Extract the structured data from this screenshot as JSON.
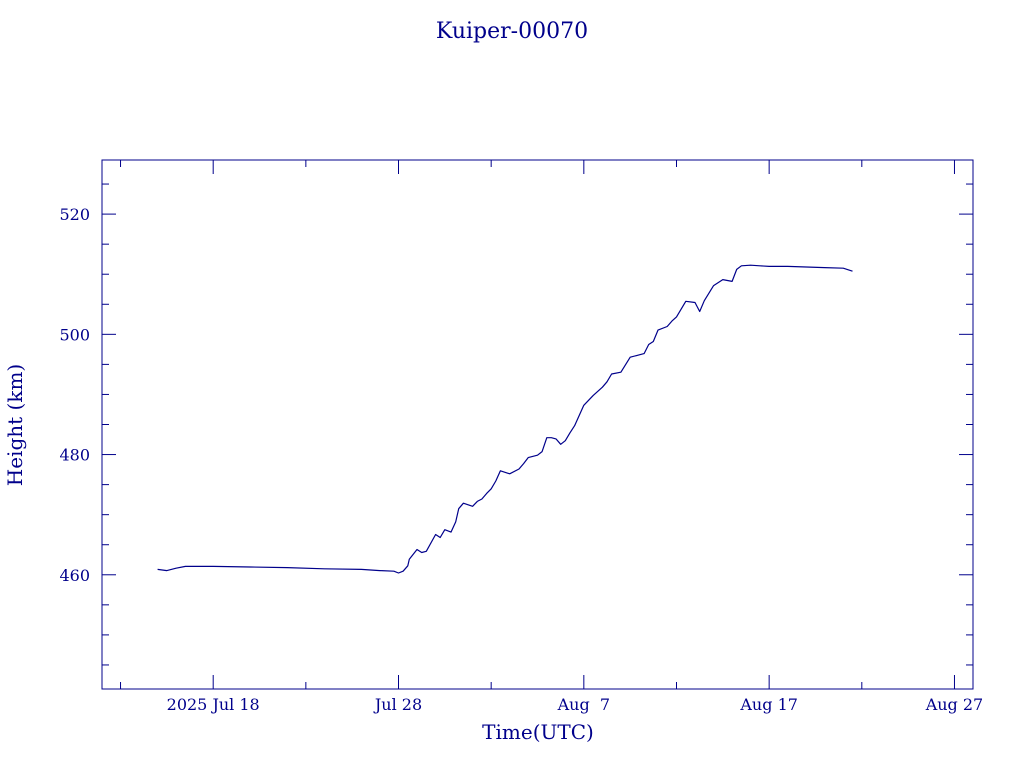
{
  "chart_data": {
    "type": "line",
    "title": "Kuiper-00070",
    "xlabel": "Time(UTC)",
    "ylabel": "Height (km)",
    "color": "#00008b",
    "x_range": [
      "2025-07-12",
      "2025-08-28"
    ],
    "ylim": [
      441,
      529
    ],
    "grid": false,
    "x_tick_labels": [
      {
        "date": "2025-07-18",
        "label": "2025 Jul 18"
      },
      {
        "date": "2025-07-28",
        "label": "Jul 28"
      },
      {
        "date": "2025-08-07",
        "label": "Aug  7"
      },
      {
        "date": "2025-08-17",
        "label": "Aug 17"
      },
      {
        "date": "2025-08-27",
        "label": "Aug 27"
      }
    ],
    "x_minor_tick_dates": [
      "2025-07-13",
      "2025-07-23",
      "2025-08-02",
      "2025-08-12",
      "2025-08-22"
    ],
    "y_ticks": [
      460,
      480,
      500,
      520
    ],
    "y_minor_step": 5,
    "series": [
      {
        "x": [
          "2025-07-15 00:00",
          "2025-07-15 12:00",
          "2025-07-16 00:00",
          "2025-07-16 12:00",
          "2025-07-17 00:00",
          "2025-07-18 00:00",
          "2025-07-20 00:00",
          "2025-07-22 00:00",
          "2025-07-24 00:00",
          "2025-07-26 00:00",
          "2025-07-27 00:00",
          "2025-07-27 18:00",
          "2025-07-28 00:00",
          "2025-07-28 06:00",
          "2025-07-28 12:00",
          "2025-07-28 14:00",
          "2025-07-29 00:00",
          "2025-07-29 06:00",
          "2025-07-29 12:00",
          "2025-07-30 00:00",
          "2025-07-30 06:00",
          "2025-07-30 12:00",
          "2025-07-30 20:00",
          "2025-07-31 02:00",
          "2025-07-31 06:00",
          "2025-07-31 12:00",
          "2025-08-01 00:00",
          "2025-08-01 06:00",
          "2025-08-01 12:00",
          "2025-08-01 18:00",
          "2025-08-02 00:00",
          "2025-08-02 06:00",
          "2025-08-02 12:00",
          "2025-08-03 00:00",
          "2025-08-03 12:00",
          "2025-08-03 18:00",
          "2025-08-04 00:00",
          "2025-08-04 12:00",
          "2025-08-04 18:00",
          "2025-08-05 00:00",
          "2025-08-05 06:00",
          "2025-08-05 12:00",
          "2025-08-05 18:00",
          "2025-08-06 00:00",
          "2025-08-06 06:00",
          "2025-08-06 12:00",
          "2025-08-07 00:00",
          "2025-08-07 12:00",
          "2025-08-08 00:00",
          "2025-08-08 06:00",
          "2025-08-08 12:00",
          "2025-08-09 00:00",
          "2025-08-09 12:00",
          "2025-08-10 00:00",
          "2025-08-10 06:00",
          "2025-08-10 12:00",
          "2025-08-10 18:00",
          "2025-08-11 00:00",
          "2025-08-11 12:00",
          "2025-08-11 18:00",
          "2025-08-12 00:00",
          "2025-08-12 12:00",
          "2025-08-13 00:00",
          "2025-08-13 06:00",
          "2025-08-13 12:00",
          "2025-08-14 00:00",
          "2025-08-14 12:00",
          "2025-08-15 00:00",
          "2025-08-15 06:00",
          "2025-08-15 12:00",
          "2025-08-16 00:00",
          "2025-08-16 12:00",
          "2025-08-17 00:00",
          "2025-08-18 00:00",
          "2025-08-19 00:00",
          "2025-08-20 00:00",
          "2025-08-21 00:00",
          "2025-08-21 12:00"
        ],
        "y": [
          460.9,
          460.7,
          461.1,
          461.4,
          461.4,
          461.4,
          461.3,
          461.2,
          461.0,
          460.9,
          460.7,
          460.6,
          460.3,
          460.6,
          461.5,
          462.6,
          464.2,
          463.7,
          463.9,
          466.7,
          466.2,
          467.5,
          467.1,
          468.8,
          471.0,
          471.9,
          471.4,
          472.2,
          472.6,
          473.5,
          474.3,
          475.6,
          477.3,
          476.8,
          477.6,
          478.5,
          479.5,
          479.9,
          480.5,
          482.8,
          482.8,
          482.6,
          481.7,
          482.3,
          483.6,
          484.8,
          488.2,
          489.8,
          491.2,
          492.1,
          493.4,
          493.7,
          496.2,
          496.6,
          496.8,
          498.3,
          498.8,
          500.7,
          501.3,
          502.2,
          502.9,
          505.5,
          505.3,
          503.8,
          505.6,
          508.1,
          509.1,
          508.8,
          510.8,
          511.4,
          511.5,
          511.4,
          511.3,
          511.3,
          511.2,
          511.1,
          511.0,
          510.5
        ]
      }
    ]
  }
}
